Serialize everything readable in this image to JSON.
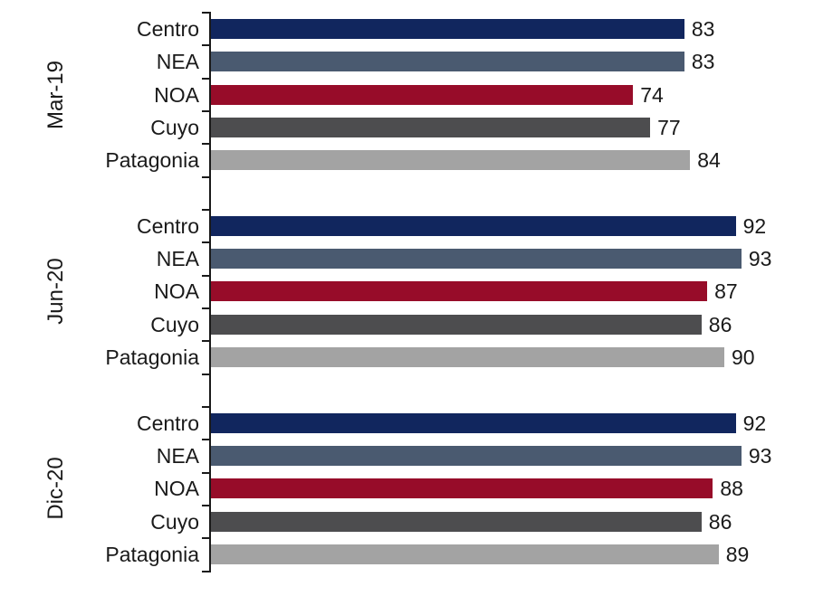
{
  "chart_data": {
    "type": "bar",
    "orientation": "horizontal",
    "title": "",
    "xlabel": "",
    "ylabel": "",
    "xlim": [
      0,
      100
    ],
    "grid": false,
    "legend": false,
    "value_labels": true,
    "categories": [
      "Centro",
      "NEA",
      "NOA",
      "Cuyo",
      "Patagonia"
    ],
    "category_colors": {
      "Centro": "#11265E",
      "NEA": "#4A5A70",
      "NOA": "#970C29",
      "Cuyo": "#4D4D4F",
      "Patagonia": "#A3A3A3"
    },
    "groups": [
      {
        "label": "Mar-19",
        "bars": [
          {
            "category": "Centro",
            "value": 83
          },
          {
            "category": "NEA",
            "value": 83
          },
          {
            "category": "NOA",
            "value": 74
          },
          {
            "category": "Cuyo",
            "value": 77
          },
          {
            "category": "Patagonia",
            "value": 84
          }
        ]
      },
      {
        "label": "Jun-20",
        "bars": [
          {
            "category": "Centro",
            "value": 92
          },
          {
            "category": "NEA",
            "value": 93
          },
          {
            "category": "NOA",
            "value": 87
          },
          {
            "category": "Cuyo",
            "value": 86
          },
          {
            "category": "Patagonia",
            "value": 90
          }
        ]
      },
      {
        "label": "Dic-20",
        "bars": [
          {
            "category": "Centro",
            "value": 92
          },
          {
            "category": "NEA",
            "value": 93
          },
          {
            "category": "NOA",
            "value": 88
          },
          {
            "category": "Cuyo",
            "value": 86
          },
          {
            "category": "Patagonia",
            "value": 89
          }
        ]
      }
    ]
  },
  "colors": {
    "axis": "#1a1a1a",
    "text": "#1a1a1a",
    "background": "#ffffff"
  }
}
